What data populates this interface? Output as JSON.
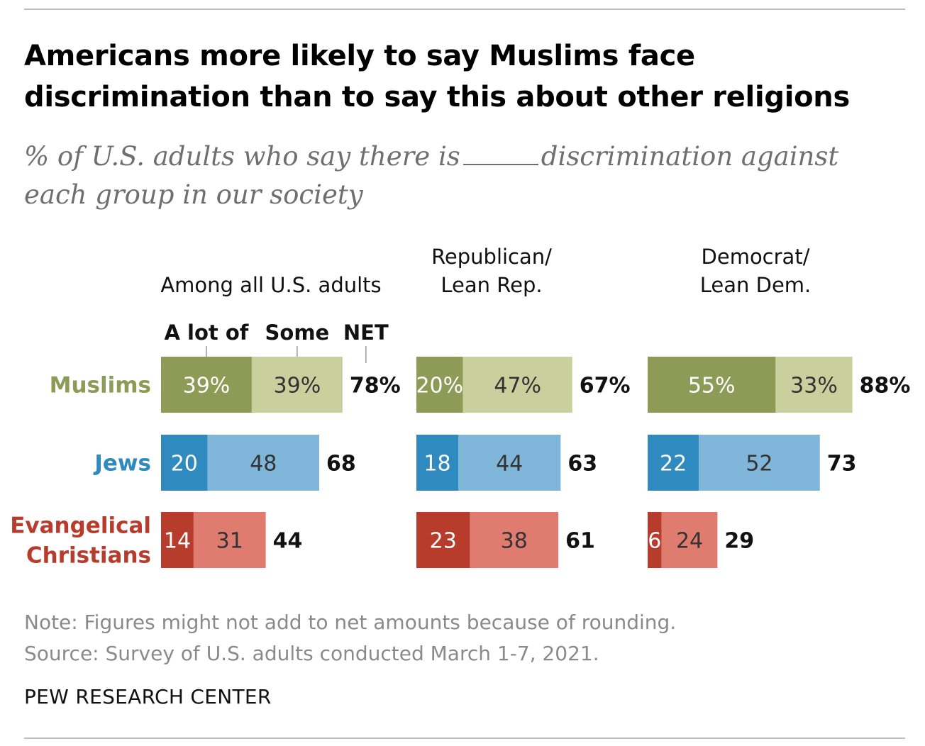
{
  "title": "Americans more likely to say Muslims face discrimination than to say this about other religions",
  "subtitle_before": "% of U.S. adults who say there is",
  "subtitle_after": "discrimination against each group in our society",
  "note": "Note: Figures might not add to net amounts because of rounding.",
  "source": "Source: Survey of U.S. adults conducted March 1-7, 2021.",
  "brand": "PEW RESEARCH CENTER",
  "legend": {
    "alot": "A lot of",
    "some": "Some",
    "net": "NET"
  },
  "colors": {
    "muslims_dark": "#8e9b56",
    "muslims_light": "#c9d09e",
    "muslims_label": "#8e9b56",
    "jews_dark": "#2f8ac0",
    "jews_light": "#7fb6da",
    "jews_label": "#2f8ac0",
    "evang_dark": "#b73c2c",
    "evang_light": "#df7c6f",
    "evang_label": "#b73c2c"
  },
  "chart_data": {
    "type": "bar",
    "stacked": true,
    "orientation": "horizontal",
    "panels": [
      {
        "header": [
          "Among all U.S. adults"
        ],
        "rows": [
          {
            "group": "Muslims",
            "a_lot": 39,
            "some": 39,
            "net": 78,
            "a_lot_label": "39%",
            "some_label": "39%",
            "net_label": "78%"
          },
          {
            "group": "Jews",
            "a_lot": 20,
            "some": 48,
            "net": 68,
            "a_lot_label": "20",
            "some_label": "48",
            "net_label": "68"
          },
          {
            "group": "Evangelical Christians",
            "a_lot": 14,
            "some": 31,
            "net": 44,
            "a_lot_label": "14",
            "some_label": "31",
            "net_label": "44"
          }
        ]
      },
      {
        "header": [
          "Republican/",
          "Lean Rep."
        ],
        "rows": [
          {
            "group": "Muslims",
            "a_lot": 20,
            "some": 47,
            "net": 67,
            "a_lot_label": "20%",
            "some_label": "47%",
            "net_label": "67%"
          },
          {
            "group": "Jews",
            "a_lot": 18,
            "some": 44,
            "net": 63,
            "a_lot_label": "18",
            "some_label": "44",
            "net_label": "63"
          },
          {
            "group": "Evangelical Christians",
            "a_lot": 23,
            "some": 38,
            "net": 61,
            "a_lot_label": "23",
            "some_label": "38",
            "net_label": "61"
          }
        ]
      },
      {
        "header": [
          "Democrat/",
          "Lean Dem."
        ],
        "rows": [
          {
            "group": "Muslims",
            "a_lot": 55,
            "some": 33,
            "net": 88,
            "a_lot_label": "55%",
            "some_label": "33%",
            "net_label": "88%"
          },
          {
            "group": "Jews",
            "a_lot": 22,
            "some": 52,
            "net": 73,
            "a_lot_label": "22",
            "some_label": "52",
            "net_label": "73"
          },
          {
            "group": "Evangelical Christians",
            "a_lot": 6,
            "some": 24,
            "net": 29,
            "a_lot_label": "6",
            "some_label": "24",
            "net_label": "29"
          }
        ]
      }
    ],
    "row_labels": [
      {
        "lines": [
          "Muslims"
        ],
        "color_key": "muslims_label"
      },
      {
        "lines": [
          "Jews"
        ],
        "color_key": "jews_label"
      },
      {
        "lines": [
          "Evangelical",
          "Christians"
        ],
        "color_key": "evang_label"
      }
    ]
  }
}
